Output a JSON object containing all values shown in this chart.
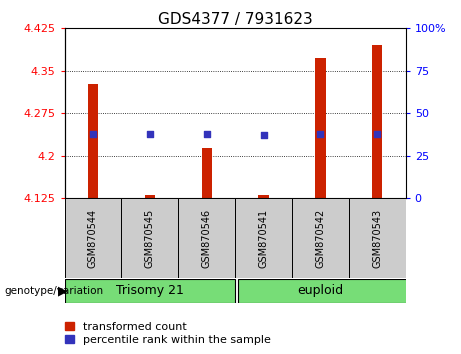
{
  "title": "GDS4377 / 7931623",
  "samples": [
    "GSM870544",
    "GSM870545",
    "GSM870546",
    "GSM870541",
    "GSM870542",
    "GSM870543"
  ],
  "bar_baseline": 4.125,
  "bar_tops": [
    4.326,
    4.131,
    4.213,
    4.131,
    4.373,
    4.396
  ],
  "blue_pct": [
    38,
    38,
    38,
    37,
    38,
    38
  ],
  "ylim_left": [
    4.125,
    4.425
  ],
  "ylim_right": [
    0,
    100
  ],
  "yticks_left": [
    4.125,
    4.2,
    4.275,
    4.35,
    4.425
  ],
  "yticks_right": [
    0,
    25,
    50,
    75,
    100
  ],
  "bar_color": "#CC2200",
  "blue_color": "#3333BB",
  "sample_box_color": "#CCCCCC",
  "plot_bg": "#FFFFFF",
  "green_color": "#77DD77",
  "label_transformed": "transformed count",
  "label_percentile": "percentile rank within the sample",
  "genotype_label": "genotype/variation",
  "title_fontsize": 11,
  "tick_fontsize": 8,
  "legend_fontsize": 8,
  "sample_fontsize": 7,
  "group_fontsize": 9,
  "bar_width": 0.18,
  "group1_label": "Trisomy 21",
  "group2_label": "euploid"
}
